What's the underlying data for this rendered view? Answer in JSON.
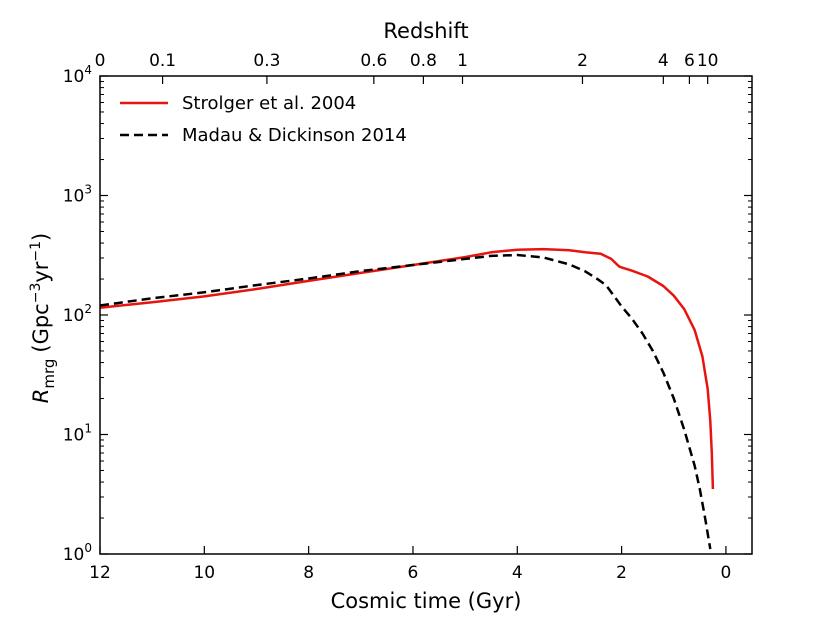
{
  "chart_data": {
    "type": "line",
    "xlabel": "Cosmic time (Gyr)",
    "top_xlabel": "Redshift",
    "ylabel_symbol": "R",
    "ylabel_subscript": "mrg",
    "ylabel_units_prefix": "(Gpc",
    "ylabel_exp1": "−3",
    "ylabel_units_mid": "yr",
    "ylabel_exp2": "−1",
    "ylabel_units_suffix": ")",
    "xlim": [
      12,
      -0.5
    ],
    "ylim": [
      1,
      10000
    ],
    "yscale": "log",
    "x_ticks": [
      12,
      10,
      8,
      6,
      4,
      2,
      0
    ],
    "y_ticks": [
      {
        "value": 1,
        "base": "10",
        "exp": "0"
      },
      {
        "value": 10,
        "base": "10",
        "exp": "1"
      },
      {
        "value": 100,
        "base": "10",
        "exp": "2"
      },
      {
        "value": 1000,
        "base": "10",
        "exp": "3"
      },
      {
        "value": 10000,
        "base": "10",
        "exp": "4"
      }
    ],
    "top_ticks": [
      {
        "label": "0",
        "t": 12.0
      },
      {
        "label": "0.1",
        "t": 10.8
      },
      {
        "label": "0.3",
        "t": 8.8
      },
      {
        "label": "0.6",
        "t": 6.75
      },
      {
        "label": "0.8",
        "t": 5.8
      },
      {
        "label": "1",
        "t": 5.05
      },
      {
        "label": "2",
        "t": 2.75
      },
      {
        "label": "4",
        "t": 1.2
      },
      {
        "label": "6",
        "t": 0.7
      },
      {
        "label": "10",
        "t": 0.35
      }
    ],
    "series": [
      {
        "name": "Strolger et al. 2004",
        "color": "#e8140e",
        "style": "solid",
        "x": [
          12.0,
          11.0,
          10.0,
          9.0,
          8.0,
          7.0,
          6.0,
          5.0,
          4.5,
          4.0,
          3.5,
          3.0,
          2.7,
          2.4,
          2.2,
          2.05,
          2.0,
          1.8,
          1.5,
          1.2,
          1.0,
          0.8,
          0.6,
          0.45,
          0.35,
          0.3,
          0.27,
          0.25
        ],
        "y": [
          115,
          128,
          143,
          165,
          193,
          225,
          262,
          305,
          335,
          352,
          356,
          348,
          335,
          325,
          295,
          255,
          250,
          235,
          210,
          175,
          145,
          112,
          75,
          45,
          24,
          13,
          7,
          3.5
        ]
      },
      {
        "name": "Madau & Dickinson 2014",
        "color": "#000000",
        "style": "dashed",
        "x": [
          12.0,
          11.0,
          10.0,
          9.0,
          8.0,
          7.0,
          6.0,
          5.0,
          4.5,
          4.0,
          3.5,
          3.0,
          2.7,
          2.5,
          2.3,
          2.0,
          1.8,
          1.6,
          1.4,
          1.2,
          1.0,
          0.8,
          0.6,
          0.5,
          0.4,
          0.3
        ],
        "y": [
          120,
          138,
          155,
          178,
          202,
          233,
          262,
          295,
          312,
          318,
          303,
          265,
          232,
          205,
          178,
          118,
          93,
          70,
          50,
          33,
          20,
          11,
          5.5,
          3.5,
          2.0,
          1.1
        ]
      }
    ]
  }
}
